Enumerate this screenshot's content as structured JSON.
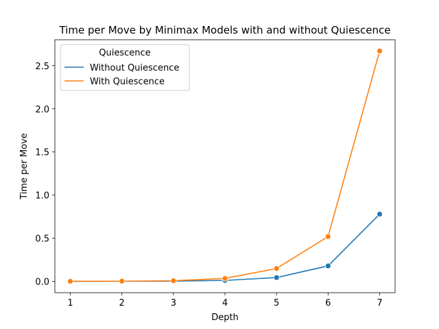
{
  "chart_data": {
    "type": "line",
    "title": "Time per Move by Minimax Models with and without Quiescence",
    "xlabel": "Depth",
    "ylabel": "Time per Move",
    "x": [
      1,
      2,
      3,
      4,
      5,
      6,
      7
    ],
    "xlim": [
      0.7,
      7.3
    ],
    "ylim": [
      -0.13,
      2.8
    ],
    "xticks": [
      1,
      2,
      3,
      4,
      5,
      6,
      7
    ],
    "yticks": [
      0.0,
      0.5,
      1.0,
      1.5,
      2.0,
      2.5
    ],
    "ytick_labels": [
      "0.0",
      "0.5",
      "1.0",
      "1.5",
      "2.0",
      "2.5"
    ],
    "grid": false,
    "legend": {
      "title": "Quiescence",
      "placement": "top-left"
    },
    "series": [
      {
        "name": "Without Quiescence",
        "color": "#1f77b4",
        "values": [
          0.001,
          0.002,
          0.004,
          0.012,
          0.045,
          0.18,
          0.78
        ]
      },
      {
        "name": "With Quiescence",
        "color": "#ff7f0e",
        "values": [
          0.002,
          0.003,
          0.008,
          0.035,
          0.15,
          0.52,
          2.67
        ]
      }
    ]
  }
}
